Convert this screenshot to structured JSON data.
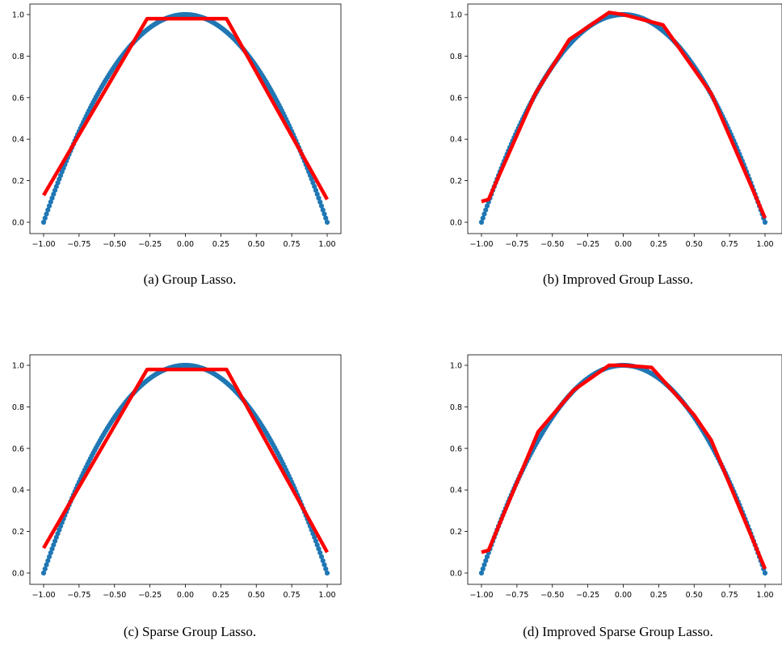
{
  "chart_data": [
    {
      "type": "scatter",
      "caption": "(a) Group Lasso.",
      "xlim": [
        -1.0,
        1.0
      ],
      "ylim": [
        0.0,
        1.0
      ],
      "xticks": [
        "−1.00",
        "−0.75",
        "−0.50",
        "−0.25",
        "0.00",
        "0.25",
        "0.50",
        "0.75",
        "1.00"
      ],
      "yticks": [
        "0.0",
        "0.2",
        "0.4",
        "0.6",
        "0.8",
        "1.0"
      ],
      "grid": false,
      "series": [
        {
          "kind": "scatter",
          "color": "#1f77b4",
          "function": "1 - x^2",
          "x_range": [
            -1.0,
            1.0
          ],
          "n_points": 201
        },
        {
          "kind": "line",
          "color": "#ff0000",
          "x": [
            -1.0,
            -0.27,
            0.29,
            1.0
          ],
          "y": [
            0.13,
            0.98,
            0.98,
            0.11
          ]
        }
      ]
    },
    {
      "type": "scatter",
      "caption": "(b) Improved Group Lasso.",
      "xlim": [
        -1.0,
        1.0
      ],
      "ylim": [
        0.0,
        1.0
      ],
      "xticks": [
        "−1.00",
        "−0.75",
        "−0.50",
        "−0.25",
        "0.00",
        "0.25",
        "0.50",
        "0.75",
        "1.00"
      ],
      "yticks": [
        "0.0",
        "0.2",
        "0.4",
        "0.6",
        "0.8",
        "1.0"
      ],
      "grid": false,
      "series": [
        {
          "kind": "scatter",
          "color": "#1f77b4",
          "function": "1 - x^2",
          "x_range": [
            -1.0,
            1.0
          ],
          "n_points": 201
        },
        {
          "kind": "line",
          "color": "#ff0000",
          "x": [
            -1.0,
            -0.95,
            -0.62,
            -0.38,
            -0.1,
            0.0,
            0.28,
            0.62,
            1.0
          ],
          "y": [
            0.1,
            0.11,
            0.62,
            0.88,
            1.01,
            1.0,
            0.95,
            0.62,
            0.02
          ]
        }
      ]
    },
    {
      "type": "scatter",
      "caption": "(c) Sparse Group Lasso.",
      "xlim": [
        -1.0,
        1.0
      ],
      "ylim": [
        0.0,
        1.0
      ],
      "xticks": [
        "−1.00",
        "−0.75",
        "−0.50",
        "−0.25",
        "0.00",
        "0.25",
        "0.50",
        "0.75",
        "1.00"
      ],
      "yticks": [
        "0.0",
        "0.2",
        "0.4",
        "0.6",
        "0.8",
        "1.0"
      ],
      "grid": false,
      "series": [
        {
          "kind": "scatter",
          "color": "#1f77b4",
          "function": "1 - x^2",
          "x_range": [
            -1.0,
            1.0
          ],
          "n_points": 201
        },
        {
          "kind": "line",
          "color": "#ff0000",
          "x": [
            -1.0,
            -0.27,
            0.29,
            1.0
          ],
          "y": [
            0.12,
            0.98,
            0.98,
            0.1
          ]
        }
      ]
    },
    {
      "type": "scatter",
      "caption": "(d) Improved Sparse Group Lasso.",
      "xlim": [
        -1.0,
        1.0
      ],
      "ylim": [
        0.0,
        1.0
      ],
      "xticks": [
        "−1.00",
        "−0.75",
        "−0.50",
        "−0.25",
        "0.00",
        "0.25",
        "0.50",
        "0.75",
        "1.00"
      ],
      "yticks": [
        "0.0",
        "0.2",
        "0.4",
        "0.6",
        "0.8",
        "1.0"
      ],
      "grid": false,
      "series": [
        {
          "kind": "scatter",
          "color": "#1f77b4",
          "function": "1 - x^2",
          "x_range": [
            -1.0,
            1.0
          ],
          "n_points": 201
        },
        {
          "kind": "line",
          "color": "#ff0000",
          "x": [
            -1.0,
            -0.95,
            -0.6,
            -0.35,
            -0.1,
            0.0,
            0.2,
            0.5,
            0.62,
            1.0
          ],
          "y": [
            0.1,
            0.11,
            0.68,
            0.88,
            1.0,
            1.0,
            0.99,
            0.76,
            0.64,
            0.02
          ]
        }
      ]
    }
  ]
}
